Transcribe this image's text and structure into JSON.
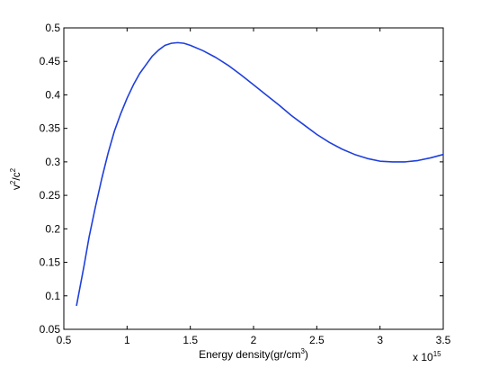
{
  "chart_data": {
    "type": "line",
    "xlabel": "Energy density(gr/cm",
    "xlabel_sup": "3",
    "xlabel_close": ")",
    "ylabel_v": "v",
    "ylabel_sup1": "2",
    "ylabel_mid": "/c",
    "ylabel_sup2": "2",
    "x_multiplier": "x 10",
    "x_multiplier_exp": "15",
    "xlim": [
      0.5,
      3.5
    ],
    "ylim": [
      0.05,
      0.5
    ],
    "x_ticks": [
      0.5,
      1,
      1.5,
      2,
      2.5,
      3,
      3.5
    ],
    "x_tick_labels": [
      "0.5",
      "1",
      "1.5",
      "2",
      "2.5",
      "3",
      "3.5"
    ],
    "y_ticks": [
      0.05,
      0.1,
      0.15,
      0.2,
      0.25,
      0.3,
      0.35,
      0.4,
      0.45,
      0.5
    ],
    "y_tick_labels": [
      "0.05",
      "0.1",
      "0.15",
      "0.2",
      "0.25",
      "0.3",
      "0.35",
      "0.4",
      "0.45",
      "0.5"
    ],
    "grid": false,
    "series": [
      {
        "color": "#1f3fdc",
        "x": [
          0.6,
          0.66,
          0.7,
          0.75,
          0.8,
          0.85,
          0.9,
          0.95,
          1.0,
          1.05,
          1.1,
          1.15,
          1.2,
          1.25,
          1.3,
          1.35,
          1.4,
          1.45,
          1.5,
          1.6,
          1.7,
          1.8,
          1.9,
          2.0,
          2.1,
          2.2,
          2.3,
          2.4,
          2.5,
          2.6,
          2.7,
          2.8,
          2.9,
          3.0,
          3.1,
          3.2,
          3.3,
          3.4,
          3.5
        ],
        "y": [
          0.085,
          0.145,
          0.188,
          0.233,
          0.275,
          0.313,
          0.346,
          0.372,
          0.395,
          0.415,
          0.432,
          0.445,
          0.458,
          0.467,
          0.474,
          0.477,
          0.478,
          0.477,
          0.474,
          0.466,
          0.456,
          0.444,
          0.43,
          0.415,
          0.4,
          0.385,
          0.369,
          0.355,
          0.341,
          0.329,
          0.319,
          0.311,
          0.305,
          0.301,
          0.3,
          0.3,
          0.302,
          0.306,
          0.311
        ]
      }
    ]
  }
}
